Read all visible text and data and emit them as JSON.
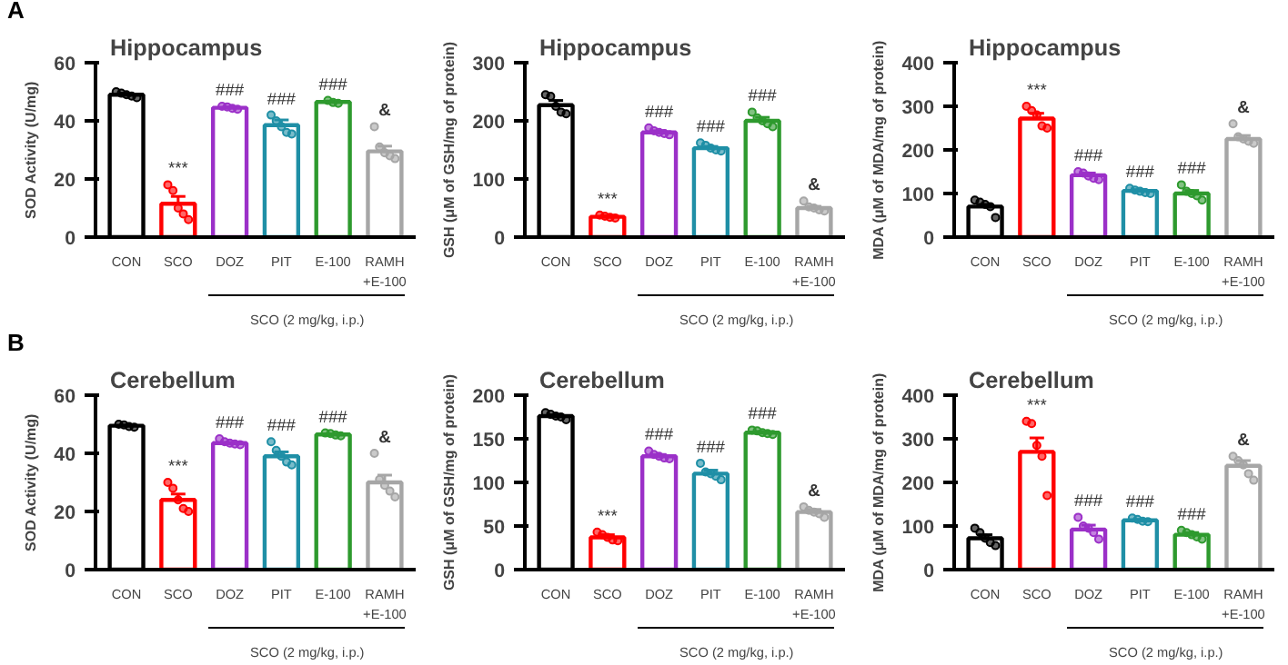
{
  "chart_data": [
    {
      "type": "bar",
      "title": "Hippocampus",
      "ylabel": "SOD Activity (U/mg)",
      "categories": [
        "CON",
        "SCO",
        "DOZ",
        "PIT",
        "E-100",
        "RAMH\n+E-100"
      ],
      "ylim": [
        0,
        60
      ],
      "yticks": [
        0,
        20,
        40,
        60
      ],
      "grid": false,
      "series": [
        {
          "colors": [
            "#000000",
            "#ff0000",
            "#9b30c8",
            "#1f8fa6",
            "#2e9a2e",
            "#a6a6a6"
          ],
          "values": [
            49,
            11.5,
            44.5,
            38.5,
            46.5,
            29.5
          ],
          "errors": [
            0.5,
            2.5,
            0.3,
            1.8,
            0.3,
            1.8
          ]
        },
        {
          "type": "scatter",
          "x": [
            "CON",
            "CON",
            "CON",
            "CON",
            "CON",
            "SCO",
            "SCO",
            "SCO",
            "SCO",
            "SCO",
            "DOZ",
            "DOZ",
            "DOZ",
            "DOZ",
            "PIT",
            "PIT",
            "PIT",
            "PIT",
            "PIT",
            "E-100",
            "E-100",
            "E-100",
            "RAMH\n+E-100",
            "RAMH\n+E-100",
            "RAMH\n+E-100",
            "RAMH\n+E-100",
            "RAMH\n+E-100"
          ],
          "values": [
            50,
            49.5,
            49,
            48.5,
            48,
            18,
            16,
            10,
            8,
            6,
            45,
            44.8,
            44.3,
            44,
            42,
            40,
            38,
            36,
            35.5,
            47,
            46.3,
            46,
            38,
            31,
            29,
            28,
            27
          ],
          "colors": [
            "#000000",
            "#000000",
            "#000000",
            "#000000",
            "#000000",
            "#ff0000",
            "#ff0000",
            "#ff0000",
            "#ff0000",
            "#ff0000",
            "#9b30c8",
            "#9b30c8",
            "#9b30c8",
            "#9b30c8",
            "#1f8fa6",
            "#1f8fa6",
            "#1f8fa6",
            "#1f8fa6",
            "#1f8fa6",
            "#2e9a2e",
            "#2e9a2e",
            "#2e9a2e",
            "#a6a6a6",
            "#a6a6a6",
            "#a6a6a6",
            "#a6a6a6",
            "#a6a6a6"
          ]
        }
      ],
      "annotations": [
        "A",
        {
          "text": "***",
          "x": "SCO",
          "y": 18
        },
        {
          "text": "###",
          "x": "DOZ",
          "y": 45
        },
        {
          "text": "###",
          "x": "PIT",
          "y": 42
        },
        {
          "text": "###",
          "x": "E-100",
          "y": 47
        },
        {
          "text": "&",
          "x": "RAMH\n+E-100",
          "y": 38
        },
        "SCO (2 mg/kg, i.p.)"
      ]
    },
    {
      "type": "bar",
      "title": "Hippocampus",
      "ylabel": "GSH (μM of GSH/mg of protein)",
      "categories": [
        "CON",
        "SCO",
        "DOZ",
        "PIT",
        "E-100",
        "RAMH\n+E-100"
      ],
      "ylim": [
        0,
        300
      ],
      "yticks": [
        0,
        100,
        200,
        300
      ],
      "grid": false,
      "series": [
        {
          "colors": [
            "#000000",
            "#ff0000",
            "#9b30c8",
            "#1f8fa6",
            "#2e9a2e",
            "#a6a6a6"
          ],
          "values": [
            227,
            35,
            180,
            153,
            200,
            50
          ],
          "errors": [
            8,
            2,
            3,
            3,
            6,
            3
          ]
        },
        {
          "type": "scatter",
          "x": [
            "CON",
            "CON",
            "CON",
            "CON",
            "CON",
            "SCO",
            "SCO",
            "SCO",
            "SCO",
            "DOZ",
            "DOZ",
            "DOZ",
            "DOZ",
            "DOZ",
            "PIT",
            "PIT",
            "PIT",
            "PIT",
            "PIT",
            "E-100",
            "E-100",
            "E-100",
            "E-100",
            "E-100",
            "RAMH\n+E-100",
            "RAMH\n+E-100",
            "RAMH\n+E-100",
            "RAMH\n+E-100",
            "RAMH\n+E-100"
          ],
          "values": [
            245,
            242,
            225,
            215,
            212,
            38,
            36,
            34,
            33,
            188,
            183,
            180,
            178,
            176,
            162,
            158,
            153,
            150,
            148,
            215,
            205,
            200,
            195,
            190,
            62,
            52,
            50,
            47,
            45
          ],
          "colors": [
            "#000000",
            "#000000",
            "#000000",
            "#000000",
            "#000000",
            "#ff0000",
            "#ff0000",
            "#ff0000",
            "#ff0000",
            "#9b30c8",
            "#9b30c8",
            "#9b30c8",
            "#9b30c8",
            "#9b30c8",
            "#1f8fa6",
            "#1f8fa6",
            "#1f8fa6",
            "#1f8fa6",
            "#1f8fa6",
            "#2e9a2e",
            "#2e9a2e",
            "#2e9a2e",
            "#2e9a2e",
            "#2e9a2e",
            "#a6a6a6",
            "#a6a6a6",
            "#a6a6a6",
            "#a6a6a6",
            "#a6a6a6"
          ]
        }
      ],
      "annotations": [
        {
          "text": "***",
          "x": "SCO",
          "y": 38
        },
        {
          "text": "###",
          "x": "DOZ",
          "y": 188
        },
        {
          "text": "###",
          "x": "PIT",
          "y": 162
        },
        {
          "text": "###",
          "x": "E-100",
          "y": 215
        },
        {
          "text": "&",
          "x": "RAMH\n+E-100",
          "y": 62
        },
        "SCO (2 mg/kg, i.p.)"
      ]
    },
    {
      "type": "bar",
      "title": "Hippocampus",
      "ylabel": "MDA (μM of MDA/mg of protein)",
      "categories": [
        "CON",
        "SCO",
        "DOZ",
        "PIT",
        "E-100",
        "RAMH\n+E-100"
      ],
      "ylim": [
        0,
        400
      ],
      "yticks": [
        0,
        100,
        200,
        300,
        400
      ],
      "grid": false,
      "series": [
        {
          "colors": [
            "#000000",
            "#ff0000",
            "#9b30c8",
            "#1f8fa6",
            "#2e9a2e",
            "#a6a6a6"
          ],
          "values": [
            70,
            272,
            142,
            106,
            100,
            225
          ],
          "errors": [
            5,
            12,
            5,
            3,
            7,
            8
          ]
        },
        {
          "type": "scatter",
          "x": [
            "CON",
            "CON",
            "CON",
            "CON",
            "CON",
            "SCO",
            "SCO",
            "SCO",
            "SCO",
            "SCO",
            "DOZ",
            "DOZ",
            "DOZ",
            "DOZ",
            "DOZ",
            "PIT",
            "PIT",
            "PIT",
            "PIT",
            "PIT",
            "E-100",
            "E-100",
            "E-100",
            "E-100",
            "E-100",
            "RAMH\n+E-100",
            "RAMH\n+E-100",
            "RAMH\n+E-100",
            "RAMH\n+E-100",
            "RAMH\n+E-100"
          ],
          "values": [
            85,
            80,
            75,
            70,
            45,
            300,
            290,
            280,
            255,
            250,
            150,
            147,
            140,
            135,
            132,
            112,
            108,
            105,
            102,
            100,
            120,
            105,
            100,
            95,
            85,
            260,
            230,
            225,
            220,
            215
          ],
          "colors": [
            "#000000",
            "#000000",
            "#000000",
            "#000000",
            "#000000",
            "#ff0000",
            "#ff0000",
            "#ff0000",
            "#ff0000",
            "#ff0000",
            "#9b30c8",
            "#9b30c8",
            "#9b30c8",
            "#9b30c8",
            "#9b30c8",
            "#1f8fa6",
            "#1f8fa6",
            "#1f8fa6",
            "#1f8fa6",
            "#1f8fa6",
            "#2e9a2e",
            "#2e9a2e",
            "#2e9a2e",
            "#2e9a2e",
            "#2e9a2e",
            "#a6a6a6",
            "#a6a6a6",
            "#a6a6a6",
            "#a6a6a6",
            "#a6a6a6"
          ]
        }
      ],
      "annotations": [
        {
          "text": "***",
          "x": "SCO",
          "y": 300
        },
        {
          "text": "###",
          "x": "DOZ",
          "y": 150
        },
        {
          "text": "###",
          "x": "PIT",
          "y": 112
        },
        {
          "text": "###",
          "x": "E-100",
          "y": 120
        },
        {
          "text": "&",
          "x": "RAMH\n+E-100",
          "y": 260
        },
        "SCO (2 mg/kg, i.p.)"
      ]
    },
    {
      "type": "bar",
      "title": "Cerebellum",
      "ylabel": "SOD Activity (U/mg)",
      "categories": [
        "CON",
        "SCO",
        "DOZ",
        "PIT",
        "E-100",
        "RAMH\n+E-100"
      ],
      "ylim": [
        0,
        60
      ],
      "yticks": [
        0,
        20,
        40,
        60
      ],
      "grid": false,
      "series": [
        {
          "colors": [
            "#000000",
            "#ff0000",
            "#9b30c8",
            "#1f8fa6",
            "#2e9a2e",
            "#a6a6a6"
          ],
          "values": [
            49.5,
            24,
            43.5,
            39,
            46.5,
            30
          ],
          "errors": [
            0.2,
            2,
            0.2,
            1.5,
            0.2,
            2.5
          ]
        },
        {
          "type": "scatter",
          "x": [
            "CON",
            "CON",
            "CON",
            "CON",
            "SCO",
            "SCO",
            "SCO",
            "SCO",
            "SCO",
            "DOZ",
            "DOZ",
            "DOZ",
            "DOZ",
            "DOZ",
            "PIT",
            "PIT",
            "PIT",
            "PIT",
            "PIT",
            "E-100",
            "E-100",
            "E-100",
            "E-100",
            "RAMH\n+E-100",
            "RAMH\n+E-100",
            "RAMH\n+E-100",
            "RAMH\n+E-100",
            "RAMH\n+E-100"
          ],
          "values": [
            50,
            49.8,
            49.2,
            49,
            30,
            28,
            24,
            21,
            20,
            45,
            44,
            43.5,
            43.2,
            43,
            44,
            41,
            39,
            37,
            36,
            47,
            46.8,
            46.3,
            46,
            40,
            31,
            29,
            27,
            25
          ],
          "colors": [
            "#000000",
            "#000000",
            "#000000",
            "#000000",
            "#ff0000",
            "#ff0000",
            "#ff0000",
            "#ff0000",
            "#ff0000",
            "#9b30c8",
            "#9b30c8",
            "#9b30c8",
            "#9b30c8",
            "#9b30c8",
            "#1f8fa6",
            "#1f8fa6",
            "#1f8fa6",
            "#1f8fa6",
            "#1f8fa6",
            "#2e9a2e",
            "#2e9a2e",
            "#2e9a2e",
            "#2e9a2e",
            "#a6a6a6",
            "#a6a6a6",
            "#a6a6a6",
            "#a6a6a6",
            "#a6a6a6"
          ]
        }
      ],
      "annotations": [
        "B",
        {
          "text": "***",
          "x": "SCO",
          "y": 30
        },
        {
          "text": "###",
          "x": "DOZ",
          "y": 45
        },
        {
          "text": "###",
          "x": "PIT",
          "y": 44
        },
        {
          "text": "###",
          "x": "E-100",
          "y": 47
        },
        {
          "text": "&",
          "x": "RAMH\n+E-100",
          "y": 40
        },
        "SCO (2 mg/kg, i.p.)"
      ]
    },
    {
      "type": "bar",
      "title": "Cerebellum",
      "ylabel": "GSH (μM of GSH/mg of protein)",
      "categories": [
        "CON",
        "SCO",
        "DOZ",
        "PIT",
        "E-100",
        "RAMH\n+E-100"
      ],
      "ylim": [
        0,
        200
      ],
      "yticks": [
        0,
        50,
        100,
        150,
        200
      ],
      "grid": false,
      "series": [
        {
          "colors": [
            "#000000",
            "#ff0000",
            "#9b30c8",
            "#1f8fa6",
            "#2e9a2e",
            "#a6a6a6"
          ],
          "values": [
            176,
            37,
            130,
            110,
            157,
            66
          ],
          "errors": [
            1.5,
            3,
            2,
            4,
            1.5,
            3
          ]
        },
        {
          "type": "scatter",
          "x": [
            "CON",
            "CON",
            "CON",
            "CON",
            "CON",
            "SCO",
            "SCO",
            "SCO",
            "SCO",
            "SCO",
            "DOZ",
            "DOZ",
            "DOZ",
            "DOZ",
            "DOZ",
            "PIT",
            "PIT",
            "PIT",
            "PIT",
            "PIT",
            "E-100",
            "E-100",
            "E-100",
            "E-100",
            "E-100",
            "RAMH\n+E-100",
            "RAMH\n+E-100",
            "RAMH\n+E-100",
            "RAMH\n+E-100",
            "RAMH\n+E-100"
          ],
          "values": [
            180,
            178,
            176,
            175,
            172,
            43,
            40,
            37,
            34,
            33,
            136,
            132,
            130,
            128,
            127,
            122,
            112,
            110,
            107,
            103,
            160,
            159,
            157,
            156,
            155,
            72,
            68,
            66,
            64,
            60
          ],
          "colors": [
            "#000000",
            "#000000",
            "#000000",
            "#000000",
            "#000000",
            "#ff0000",
            "#ff0000",
            "#ff0000",
            "#ff0000",
            "#ff0000",
            "#9b30c8",
            "#9b30c8",
            "#9b30c8",
            "#9b30c8",
            "#9b30c8",
            "#1f8fa6",
            "#1f8fa6",
            "#1f8fa6",
            "#1f8fa6",
            "#1f8fa6",
            "#2e9a2e",
            "#2e9a2e",
            "#2e9a2e",
            "#2e9a2e",
            "#2e9a2e",
            "#a6a6a6",
            "#a6a6a6",
            "#a6a6a6",
            "#a6a6a6",
            "#a6a6a6"
          ]
        }
      ],
      "annotations": [
        {
          "text": "***",
          "x": "SCO",
          "y": 43
        },
        {
          "text": "###",
          "x": "DOZ",
          "y": 136
        },
        {
          "text": "###",
          "x": "PIT",
          "y": 122
        },
        {
          "text": "###",
          "x": "E-100",
          "y": 160
        },
        {
          "text": "&",
          "x": "RAMH\n+E-100",
          "y": 72
        },
        "SCO (2 mg/kg, i.p.)"
      ]
    },
    {
      "type": "bar",
      "title": "Cerebellum",
      "ylabel": "MDA (μM of MDA/mg of protein)",
      "categories": [
        "CON",
        "SCO",
        "DOZ",
        "PIT",
        "E-100",
        "RAMH\n+E-100"
      ],
      "ylim": [
        0,
        400
      ],
      "yticks": [
        0,
        100,
        200,
        300,
        400
      ],
      "grid": false,
      "series": [
        {
          "colors": [
            "#000000",
            "#ff0000",
            "#9b30c8",
            "#1f8fa6",
            "#2e9a2e",
            "#a6a6a6"
          ],
          "values": [
            72,
            270,
            92,
            113,
            80,
            238
          ],
          "errors": [
            8,
            32,
            10,
            2,
            5,
            12
          ]
        },
        {
          "type": "scatter",
          "x": [
            "CON",
            "CON",
            "CON",
            "CON",
            "CON",
            "SCO",
            "SCO",
            "SCO",
            "SCO",
            "SCO",
            "DOZ",
            "DOZ",
            "DOZ",
            "DOZ",
            "DOZ",
            "PIT",
            "PIT",
            "PIT",
            "PIT",
            "E-100",
            "E-100",
            "E-100",
            "E-100",
            "E-100",
            "RAMH\n+E-100",
            "RAMH\n+E-100",
            "RAMH\n+E-100",
            "RAMH\n+E-100",
            "RAMH\n+E-100"
          ],
          "values": [
            95,
            85,
            72,
            62,
            55,
            340,
            335,
            285,
            260,
            170,
            120,
            100,
            95,
            85,
            70,
            118,
            115,
            111,
            110,
            90,
            85,
            80,
            75,
            70,
            260,
            250,
            240,
            220,
            205
          ],
          "colors": [
            "#000000",
            "#000000",
            "#000000",
            "#000000",
            "#000000",
            "#ff0000",
            "#ff0000",
            "#ff0000",
            "#ff0000",
            "#ff0000",
            "#9b30c8",
            "#9b30c8",
            "#9b30c8",
            "#9b30c8",
            "#9b30c8",
            "#1f8fa6",
            "#1f8fa6",
            "#1f8fa6",
            "#1f8fa6",
            "#2e9a2e",
            "#2e9a2e",
            "#2e9a2e",
            "#2e9a2e",
            "#2e9a2e",
            "#a6a6a6",
            "#a6a6a6",
            "#a6a6a6",
            "#a6a6a6",
            "#a6a6a6"
          ]
        }
      ],
      "annotations": [
        {
          "text": "***",
          "x": "SCO",
          "y": 340
        },
        {
          "text": "###",
          "x": "DOZ",
          "y": 120
        },
        {
          "text": "###",
          "x": "PIT",
          "y": 118
        },
        {
          "text": "###",
          "x": "E-100",
          "y": 90
        },
        {
          "text": "&",
          "x": "RAMH\n+E-100",
          "y": 260
        },
        "SCO (2 mg/kg, i.p.)"
      ]
    }
  ]
}
